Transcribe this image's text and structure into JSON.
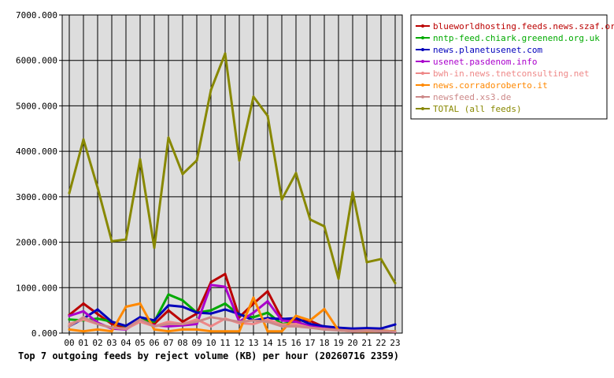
{
  "chart_data": {
    "type": "line",
    "title": "Top 7 outgoing feeds by reject volume (KB) per hour (20260716 2359)",
    "xlabel": "",
    "ylabel": "",
    "categories": [
      "00",
      "01",
      "02",
      "03",
      "04",
      "05",
      "06",
      "07",
      "08",
      "09",
      "10",
      "11",
      "12",
      "13",
      "14",
      "15",
      "16",
      "17",
      "18",
      "19",
      "20",
      "21",
      "22",
      "23"
    ],
    "ylim": [
      0,
      7000
    ],
    "yticks": [
      0,
      1000,
      2000,
      3000,
      4000,
      5000,
      6000,
      7000
    ],
    "ytick_labels": [
      "0.000",
      "1000.000",
      "2000.000",
      "3000.000",
      "4000.000",
      "5000.000",
      "6000.000",
      "7000.000"
    ],
    "grid": true,
    "legend_position": "right",
    "series": [
      {
        "name": "blueworldhosting.feeds.news.szaf.org",
        "color": "#bb0000",
        "values": [
          400,
          650,
          420,
          200,
          120,
          300,
          200,
          500,
          250,
          430,
          1120,
          1300,
          350,
          650,
          920,
          320,
          280,
          270,
          130,
          80,
          60,
          80,
          60,
          30
        ]
      },
      {
        "name": "nntp-feed.chiark.greenend.org.uk",
        "color": "#00aa00",
        "values": [
          300,
          280,
          320,
          250,
          150,
          300,
          250,
          850,
          720,
          450,
          500,
          650,
          400,
          350,
          450,
          200,
          250,
          150,
          120,
          80,
          60,
          70,
          50,
          40
        ]
      },
      {
        "name": "news.planetusenet.com",
        "color": "#0000bb",
        "values": [
          150,
          320,
          520,
          250,
          160,
          350,
          280,
          610,
          580,
          450,
          430,
          520,
          420,
          280,
          330,
          310,
          330,
          200,
          150,
          120,
          100,
          110,
          100,
          190
        ]
      },
      {
        "name": "usenet.pasdenom.info",
        "color": "#aa00cc",
        "values": [
          380,
          480,
          230,
          100,
          80,
          280,
          170,
          150,
          170,
          200,
          1060,
          1020,
          250,
          450,
          700,
          280,
          250,
          150,
          100,
          70,
          40,
          50,
          40,
          30
        ]
      },
      {
        "name": "bwh-in.news.tnetconsulting.net",
        "color": "#ee8888",
        "values": [
          200,
          300,
          200,
          120,
          90,
          250,
          150,
          250,
          200,
          300,
          150,
          320,
          220,
          200,
          300,
          190,
          200,
          120,
          90,
          70,
          50,
          60,
          50,
          40
        ]
      },
      {
        "name": "news.corradoroberto.it",
        "color": "#ff8800",
        "values": [
          80,
          40,
          80,
          40,
          580,
          650,
          80,
          40,
          80,
          80,
          40,
          40,
          40,
          780,
          40,
          40,
          380,
          280,
          530,
          60,
          40,
          40,
          40,
          40
        ]
      },
      {
        "name": "newsfeed.xs3.de",
        "color": "#cc8888",
        "values": [
          150,
          350,
          200,
          120,
          100,
          300,
          150,
          200,
          200,
          250,
          350,
          300,
          250,
          280,
          250,
          150,
          150,
          120,
          80,
          60,
          40,
          50,
          40,
          30
        ]
      },
      {
        "name": "TOTAL (all feeds)",
        "color": "#888800",
        "values": [
          3080,
          4260,
          3200,
          2020,
          2060,
          3820,
          1880,
          4300,
          3500,
          3800,
          5350,
          6150,
          3800,
          5200,
          4780,
          2940,
          3520,
          2500,
          2350,
          1200,
          3100,
          1560,
          1630,
          1100
        ]
      }
    ]
  }
}
